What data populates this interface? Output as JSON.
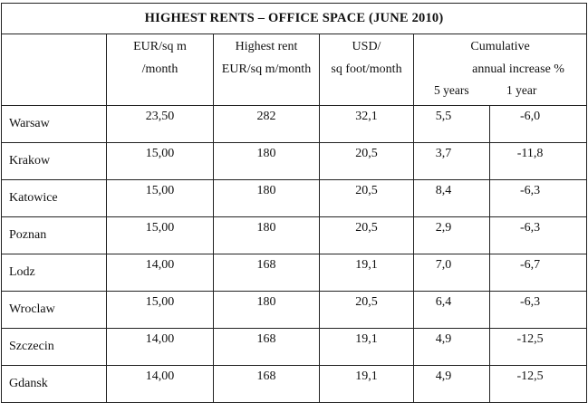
{
  "title": "HIGHEST RENTS – OFFICE SPACE (JUNE 2010)",
  "headers": {
    "eur_sqm_line1": "EUR/sq m",
    "eur_sqm_line2": "/month",
    "highest_line1": "Highest rent",
    "highest_line2": "EUR/sq m/month",
    "usd_line1": "USD/",
    "usd_line2": "sq foot/month",
    "cum_line1": "Cumulative",
    "cum_line2": "annual increase %",
    "cum_5y": "5 years",
    "cum_1y": "1 year"
  },
  "rows": [
    {
      "city": "Warsaw",
      "eur_sqm_month": "23,50",
      "highest_rent": "282",
      "usd_sqft_month": "32,1",
      "inc_5y": "5,5",
      "inc_1y": "-6,0"
    },
    {
      "city": "Krakow",
      "eur_sqm_month": "15,00",
      "highest_rent": "180",
      "usd_sqft_month": "20,5",
      "inc_5y": "3,7",
      "inc_1y": "-11,8"
    },
    {
      "city": "Katowice",
      "eur_sqm_month": "15,00",
      "highest_rent": "180",
      "usd_sqft_month": "20,5",
      "inc_5y": "8,4",
      "inc_1y": "-6,3"
    },
    {
      "city": "Poznan",
      "eur_sqm_month": "15,00",
      "highest_rent": "180",
      "usd_sqft_month": "20,5",
      "inc_5y": "2,9",
      "inc_1y": "-6,3"
    },
    {
      "city": "Lodz",
      "eur_sqm_month": "14,00",
      "highest_rent": "168",
      "usd_sqft_month": "19,1",
      "inc_5y": "7,0",
      "inc_1y": "-6,7"
    },
    {
      "city": "Wroclaw",
      "eur_sqm_month": "15,00",
      "highest_rent": "180",
      "usd_sqft_month": "20,5",
      "inc_5y": "6,4",
      "inc_1y": "-6,3"
    },
    {
      "city": "Szczecin",
      "eur_sqm_month": "14,00",
      "highest_rent": "168",
      "usd_sqft_month": "19,1",
      "inc_5y": "4,9",
      "inc_1y": "-12,5"
    },
    {
      "city": "Gdansk",
      "eur_sqm_month": "14,00",
      "highest_rent": "168",
      "usd_sqft_month": "19,1",
      "inc_5y": "4,9",
      "inc_1y": "-12,5"
    }
  ]
}
